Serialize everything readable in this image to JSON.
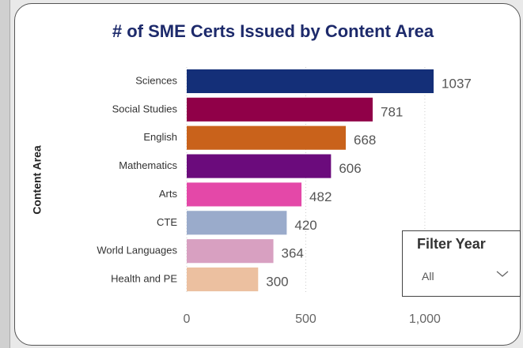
{
  "chart_data": {
    "type": "bar",
    "orientation": "horizontal",
    "title": "# of SME Certs Issued by Content Area",
    "ylabel": "Content Area",
    "categories": [
      "Sciences",
      "Social Studies",
      "English",
      "Mathematics",
      "Arts",
      "CTE",
      "World Languages",
      "Health and PE"
    ],
    "values": [
      1037,
      781,
      668,
      606,
      482,
      420,
      364,
      300
    ],
    "colors": [
      "#142f78",
      "#900048",
      "#c9621b",
      "#6b0b7c",
      "#e448a8",
      "#9aabcb",
      "#d8a0c1",
      "#ecc0a0"
    ],
    "xlim": [
      0,
      1100
    ],
    "xticks": [
      0,
      500,
      {
        "value": 1000,
        "label": "1,000"
      }
    ],
    "grid": true
  },
  "filter": {
    "title": "Filter Year",
    "value": "All"
  }
}
